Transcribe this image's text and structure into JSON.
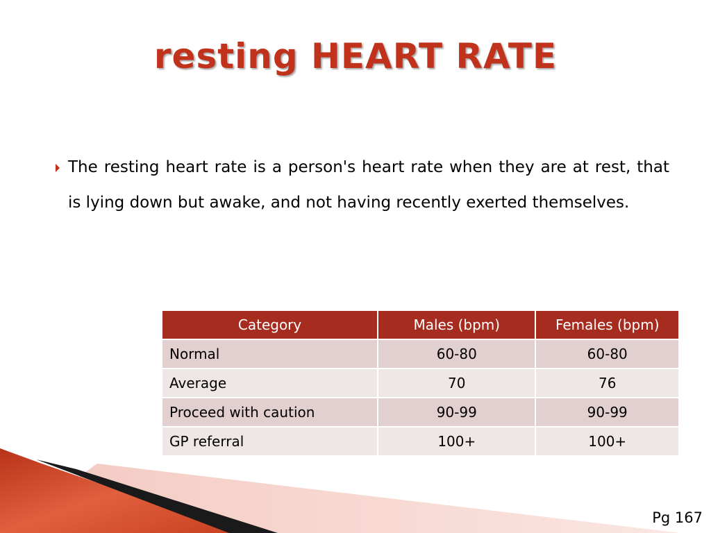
{
  "slide": {
    "title": "resting HEART RATE",
    "bullet_icon": "triangle-right-icon",
    "bullet_text": "The resting heart rate is a person's heart rate when they are at rest, that is lying down but awake, and not having recently exerted themselves.",
    "page_number": "Pg 167"
  },
  "table": {
    "headers": [
      "Category",
      "Males (bpm)",
      "Females (bpm)"
    ],
    "rows": [
      {
        "category": "Normal",
        "males": "60-80",
        "females": "60-80"
      },
      {
        "category": "Average",
        "males": "70",
        "females": "76"
      },
      {
        "category": "Proceed with caution",
        "males": "90-99",
        "females": "90-99"
      },
      {
        "category": "GP referral",
        "males": "100+",
        "females": "100+"
      }
    ]
  },
  "colors": {
    "title": "#c0321c",
    "header_bg": "#a72c20",
    "row_odd": "#e2cfcf",
    "row_even": "#efe7e6",
    "accent": "#c0321c"
  }
}
